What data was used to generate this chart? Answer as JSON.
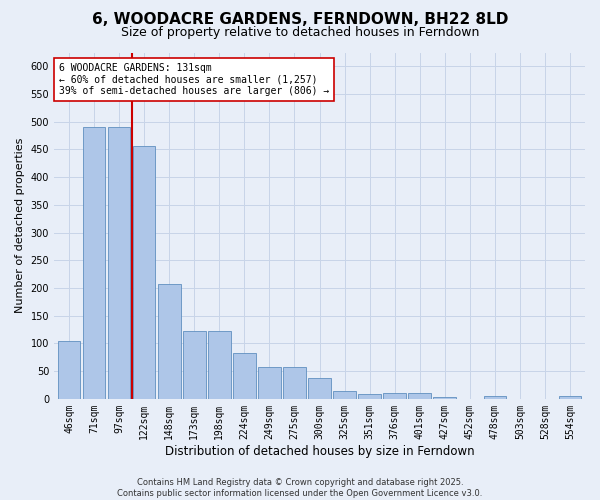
{
  "title": "6, WOODACRE GARDENS, FERNDOWN, BH22 8LD",
  "subtitle": "Size of property relative to detached houses in Ferndown",
  "xlabel": "Distribution of detached houses by size in Ferndown",
  "ylabel": "Number of detached properties",
  "categories": [
    "46sqm",
    "71sqm",
    "97sqm",
    "122sqm",
    "148sqm",
    "173sqm",
    "198sqm",
    "224sqm",
    "249sqm",
    "275sqm",
    "300sqm",
    "325sqm",
    "351sqm",
    "376sqm",
    "401sqm",
    "427sqm",
    "452sqm",
    "478sqm",
    "503sqm",
    "528sqm",
    "554sqm"
  ],
  "values": [
    105,
    490,
    490,
    457,
    207,
    122,
    122,
    82,
    58,
    58,
    38,
    14,
    8,
    10,
    10,
    4,
    0,
    5,
    0,
    0,
    5
  ],
  "bar_color": "#aec6e8",
  "bar_edge_color": "#6090c0",
  "grid_color": "#c8d4e8",
  "background_color": "#e8eef8",
  "vline_x": 2.5,
  "vline_color": "#cc0000",
  "annotation_text": "6 WOODACRE GARDENS: 131sqm\n← 60% of detached houses are smaller (1,257)\n39% of semi-detached houses are larger (806) →",
  "annotation_box_color": "#ffffff",
  "annotation_box_edge": "#cc0000",
  "ylim": [
    0,
    625
  ],
  "yticks": [
    0,
    50,
    100,
    150,
    200,
    250,
    300,
    350,
    400,
    450,
    500,
    550,
    600
  ],
  "footer": "Contains HM Land Registry data © Crown copyright and database right 2025.\nContains public sector information licensed under the Open Government Licence v3.0.",
  "title_fontsize": 11,
  "subtitle_fontsize": 9,
  "xlabel_fontsize": 8.5,
  "ylabel_fontsize": 8,
  "tick_fontsize": 7,
  "annotation_fontsize": 7,
  "footer_fontsize": 6
}
